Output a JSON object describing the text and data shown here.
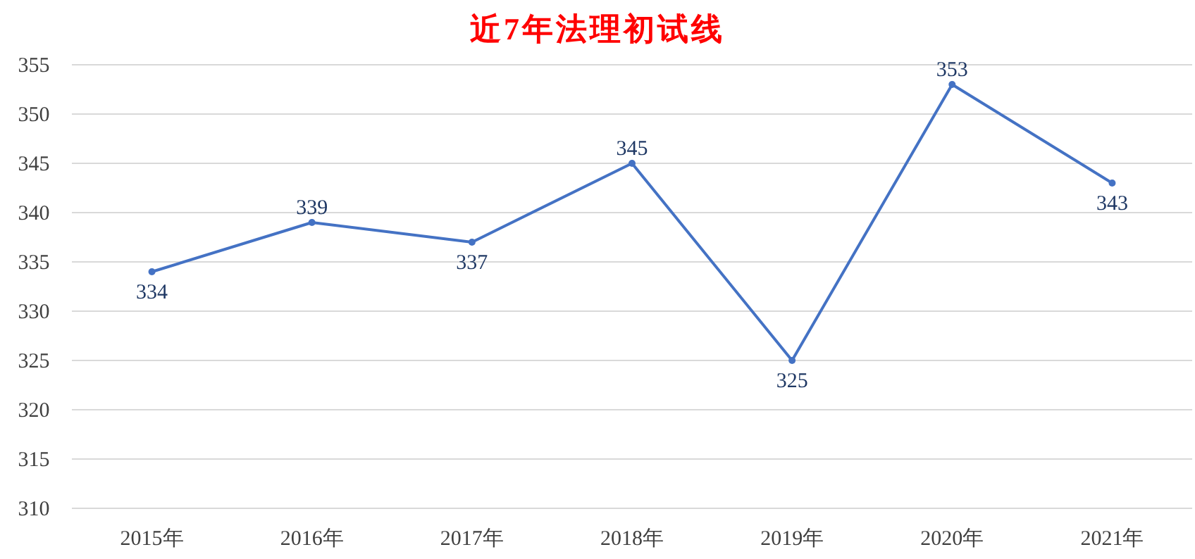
{
  "chart_data": {
    "type": "line",
    "title": "近7年法理初试线",
    "categories": [
      "2015年",
      "2016年",
      "2017年",
      "2018年",
      "2019年",
      "2020年",
      "2021年"
    ],
    "values": [
      334,
      339,
      337,
      345,
      325,
      353,
      343
    ],
    "color": "#4472c4",
    "ylim": [
      310,
      355
    ],
    "yticks": [
      310,
      315,
      320,
      325,
      330,
      335,
      340,
      345,
      350,
      355
    ],
    "grid": "y",
    "marker": "circle",
    "data_labels": true
  }
}
